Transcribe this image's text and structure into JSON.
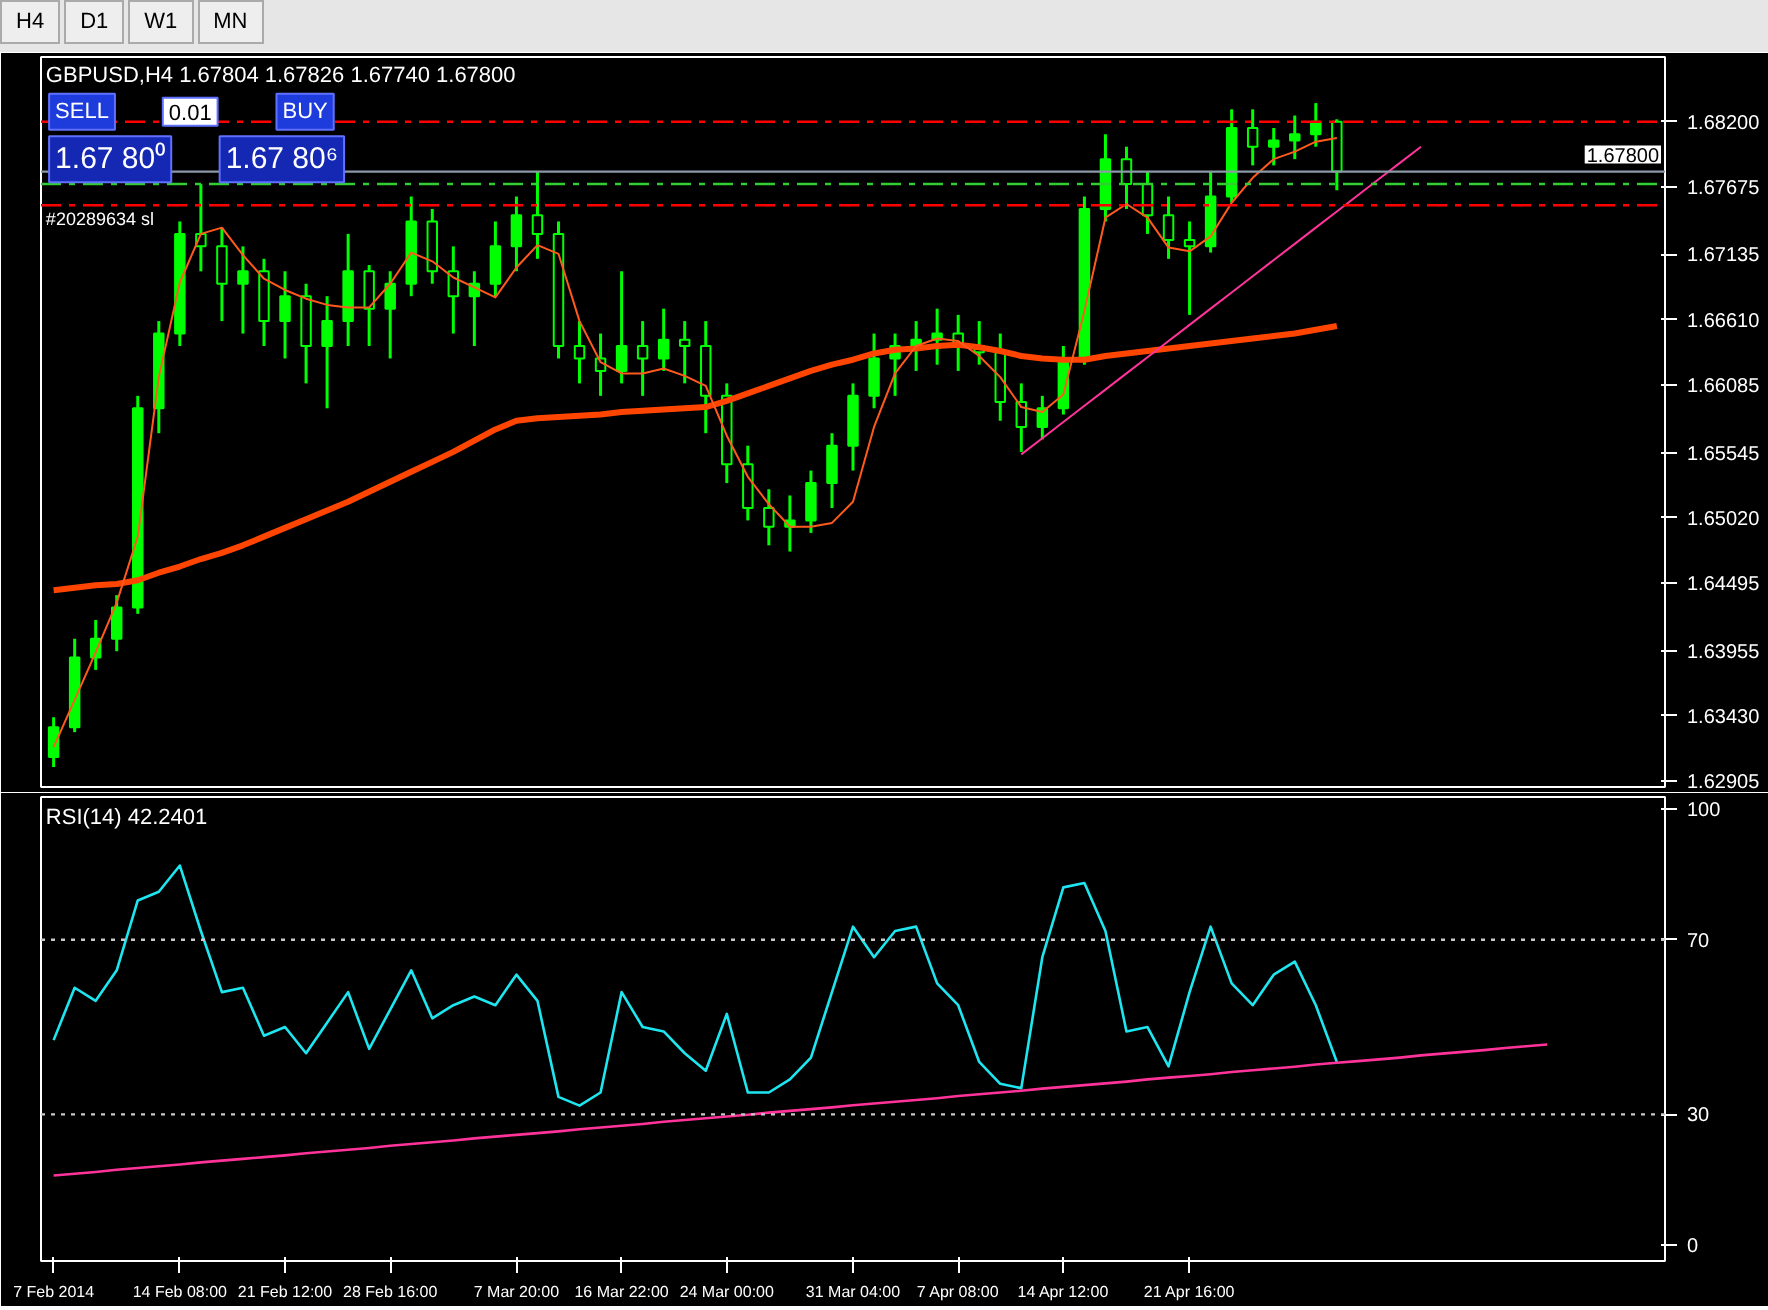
{
  "chart_data": [
    {
      "type": "candlestick",
      "title": "GBPUSD,H4  1.67804 1.67826 1.67740 1.67800",
      "color": "#00ff00",
      "categories": [
        null,
        null,
        null,
        null,
        null,
        null,
        null,
        null,
        null,
        null,
        null,
        null,
        null,
        null,
        null,
        null,
        null,
        null,
        null,
        null,
        null,
        null,
        null,
        null,
        null,
        null,
        null,
        null,
        null,
        null,
        null,
        null,
        null,
        null,
        null,
        null,
        null,
        null,
        null,
        null,
        null,
        null,
        null,
        null,
        null,
        null,
        null,
        null,
        null,
        null,
        null,
        null,
        null,
        null,
        null,
        null,
        null,
        null,
        null,
        null,
        null,
        null,
        null,
        null,
        null,
        null,
        null,
        null,
        null,
        null,
        null,
        null,
        null,
        null,
        null,
        null,
        null
      ],
      "ohlc": [
        [
          1.631,
          1.6342,
          1.6302,
          1.6334
        ],
        [
          1.6334,
          1.6405,
          1.633,
          1.639
        ],
        [
          1.639,
          1.642,
          1.638,
          1.6405
        ],
        [
          1.6405,
          1.644,
          1.6395,
          1.643
        ],
        [
          1.643,
          1.66,
          1.6425,
          1.659
        ],
        [
          1.659,
          1.666,
          1.657,
          1.665
        ],
        [
          1.665,
          1.674,
          1.664,
          1.673
        ],
        [
          1.673,
          1.677,
          1.67,
          1.672
        ],
        [
          1.672,
          1.6735,
          1.666,
          1.669
        ],
        [
          1.669,
          1.672,
          1.665,
          1.67
        ],
        [
          1.67,
          1.671,
          1.664,
          1.666
        ],
        [
          1.666,
          1.67,
          1.663,
          1.668
        ],
        [
          1.668,
          1.669,
          1.661,
          1.664
        ],
        [
          1.664,
          1.668,
          1.659,
          1.666
        ],
        [
          1.666,
          1.673,
          1.664,
          1.67
        ],
        [
          1.67,
          1.6705,
          1.664,
          1.667
        ],
        [
          1.667,
          1.67,
          1.663,
          1.669
        ],
        [
          1.669,
          1.676,
          1.668,
          1.674
        ],
        [
          1.674,
          1.675,
          1.669,
          1.67
        ],
        [
          1.67,
          1.672,
          1.665,
          1.668
        ],
        [
          1.668,
          1.67,
          1.664,
          1.669
        ],
        [
          1.669,
          1.674,
          1.668,
          1.672
        ],
        [
          1.672,
          1.676,
          1.67,
          1.6745
        ],
        [
          1.6745,
          1.678,
          1.671,
          1.673
        ],
        [
          1.673,
          1.674,
          1.663,
          1.664
        ],
        [
          1.664,
          1.666,
          1.661,
          1.663
        ],
        [
          1.663,
          1.665,
          1.66,
          1.662
        ],
        [
          1.662,
          1.67,
          1.661,
          1.664
        ],
        [
          1.664,
          1.666,
          1.66,
          1.663
        ],
        [
          1.663,
          1.667,
          1.662,
          1.6645
        ],
        [
          1.6645,
          1.666,
          1.661,
          1.664
        ],
        [
          1.664,
          1.666,
          1.657,
          1.66
        ],
        [
          1.66,
          1.661,
          1.653,
          1.6545
        ],
        [
          1.6545,
          1.656,
          1.65,
          1.651
        ],
        [
          1.651,
          1.6525,
          1.648,
          1.6495
        ],
        [
          1.6495,
          1.652,
          1.6475,
          1.65
        ],
        [
          1.65,
          1.654,
          1.649,
          1.653
        ],
        [
          1.653,
          1.657,
          1.651,
          1.656
        ],
        [
          1.656,
          1.661,
          1.654,
          1.66
        ],
        [
          1.66,
          1.665,
          1.659,
          1.663
        ],
        [
          1.663,
          1.665,
          1.66,
          1.664
        ],
        [
          1.664,
          1.666,
          1.662,
          1.6645
        ],
        [
          1.6645,
          1.667,
          1.6625,
          1.665
        ],
        [
          1.665,
          1.6665,
          1.662,
          1.664
        ],
        [
          1.664,
          1.666,
          1.6625,
          1.6635
        ],
        [
          1.6635,
          1.665,
          1.658,
          1.6595
        ],
        [
          1.6595,
          1.661,
          1.6555,
          1.6575
        ],
        [
          1.6575,
          1.66,
          1.6565,
          1.659
        ],
        [
          1.659,
          1.664,
          1.6585,
          1.663
        ],
        [
          1.663,
          1.676,
          1.6625,
          1.675
        ],
        [
          1.675,
          1.681,
          1.674,
          1.679
        ],
        [
          1.679,
          1.68,
          1.675,
          1.677
        ],
        [
          1.677,
          1.678,
          1.673,
          1.6745
        ],
        [
          1.6745,
          1.676,
          1.671,
          1.6725
        ],
        [
          1.6725,
          1.674,
          1.6665,
          1.672
        ],
        [
          1.672,
          1.678,
          1.6715,
          1.676
        ],
        [
          1.676,
          1.683,
          1.6755,
          1.6815
        ],
        [
          1.6815,
          1.683,
          1.6785,
          1.68
        ],
        [
          1.68,
          1.6815,
          1.6785,
          1.6805
        ],
        [
          1.6805,
          1.6825,
          1.679,
          1.681
        ],
        [
          1.681,
          1.6835,
          1.68,
          1.682
        ],
        [
          1.682,
          1.6822,
          1.6765,
          1.678
        ],
        null,
        null,
        null,
        null,
        null,
        null,
        null,
        null,
        null,
        null,
        null,
        null,
        null,
        null,
        null
      ],
      "series": [
        {
          "type": "line",
          "color": "#ff4500",
          "values": [
            1.6444,
            1.6446,
            1.6448,
            1.6449,
            1.6452,
            1.6458,
            1.6463,
            1.6469,
            1.6474,
            1.648,
            1.6487,
            1.6494,
            1.6501,
            1.6508,
            1.6515,
            1.6523,
            1.6531,
            1.6539,
            1.6547,
            1.6555,
            1.6564,
            1.6573,
            1.658,
            1.6582,
            1.6583,
            1.6584,
            1.6585,
            1.6587,
            1.6588,
            1.6589,
            1.659,
            1.6591,
            1.6596,
            1.6602,
            1.6608,
            1.6614,
            1.662,
            1.6625,
            1.6629,
            1.6634,
            1.6637,
            1.6638,
            1.664,
            1.6641,
            1.6639,
            1.6636,
            1.6632,
            1.663,
            1.6629,
            1.6629,
            1.6632,
            1.6634,
            1.6636,
            1.6638,
            1.664,
            1.6642,
            1.6644,
            1.6646,
            1.6648,
            1.665,
            1.6653,
            1.6656,
            null,
            null,
            null,
            null,
            null,
            null,
            null,
            null,
            null,
            null,
            null,
            null,
            null,
            null,
            null
          ]
        },
        {
          "type": "line",
          "color": "#ff5a1e",
          "values": [
            1.6318,
            1.6356,
            1.6394,
            1.6434,
            1.6487,
            1.6615,
            1.6691,
            1.673,
            1.6735,
            1.6713,
            1.6694,
            1.6685,
            1.6678,
            1.6673,
            1.6671,
            1.6671,
            1.669,
            1.6715,
            1.6708,
            1.6695,
            1.6687,
            1.6679,
            1.6703,
            1.6721,
            1.6714,
            1.666,
            1.6627,
            1.6618,
            1.6618,
            1.6622,
            1.6616,
            1.6608,
            1.6568,
            1.6535,
            1.6513,
            1.6495,
            1.6495,
            1.6498,
            1.6515,
            1.6575,
            1.6618,
            1.664,
            1.6646,
            1.6644,
            1.6632,
            1.6615,
            1.6591,
            1.6587,
            1.6601,
            1.6668,
            1.6743,
            1.6754,
            1.6743,
            1.6719,
            1.6716,
            1.6728,
            1.6755,
            1.6775,
            1.679,
            1.6796,
            1.6804,
            1.6807,
            null,
            null,
            null,
            null,
            null,
            null,
            null,
            null,
            null,
            null,
            null,
            null,
            null,
            null,
            null
          ]
        },
        {
          "type": "line",
          "color": "#ff3399",
          "values": [
            null,
            null,
            null,
            null,
            null,
            null,
            null,
            null,
            null,
            null,
            null,
            null,
            null,
            null,
            null,
            null,
            null,
            null,
            null,
            null,
            null,
            null,
            null,
            null,
            null,
            null,
            null,
            null,
            null,
            null,
            null,
            null,
            null,
            null,
            null,
            null,
            null,
            null,
            null,
            null,
            null,
            null,
            null,
            null,
            null,
            null,
            1.6553,
            1.6566,
            1.6579,
            1.6592,
            1.6605,
            1.6618,
            1.6631,
            1.6644,
            1.6657,
            1.667,
            1.6683,
            1.6696,
            1.6709,
            1.6722,
            1.6735,
            1.6748,
            1.6761,
            1.6774,
            1.6787,
            1.68,
            null,
            null,
            null,
            null,
            null,
            null,
            null,
            null,
            null,
            null,
            null
          ]
        }
      ],
      "ref_lines": [
        {
          "axis": "y",
          "value": 1.682,
          "color": "#ff0000",
          "line_style": "dashed"
        },
        {
          "axis": "y",
          "value": 1.677,
          "color": "#32cd32",
          "line_style": "dashed"
        },
        {
          "axis": "y",
          "value": 1.6753,
          "color": "#ff0000",
          "line_style": "dashed",
          "label": "#20289634 sl"
        },
        {
          "axis": "y",
          "value": 1.678,
          "color": "#8c9aa8",
          "line_style": "solid",
          "label": "1.67800"
        }
      ],
      "annotations": [
        "H4",
        "D1",
        "W1",
        "MN",
        "SELL",
        "0.01",
        "BUY",
        "1.67 80⁰",
        "1.67 80⁶"
      ],
      "ylim": [
        1.6286,
        1.6872
      ],
      "yticks": [
        {
          "value": 1.682,
          "label": "1.68200"
        },
        {
          "value": 1.67675,
          "label": "1.67675"
        },
        {
          "value": 1.67135,
          "label": "1.67135"
        },
        {
          "value": 1.6661,
          "label": "1.66610"
        },
        {
          "value": 1.66085,
          "label": "1.66085"
        },
        {
          "value": 1.65545,
          "label": "1.65545"
        },
        {
          "value": 1.6502,
          "label": "1.65020"
        },
        {
          "value": 1.64495,
          "label": "1.64495"
        },
        {
          "value": 1.63955,
          "label": "1.63955"
        },
        {
          "value": 1.6343,
          "label": "1.63430"
        },
        {
          "value": 1.62905,
          "label": "1.62905"
        }
      ],
      "tick_labels": "y",
      "grid": false
    },
    {
      "type": "line",
      "title": "RSI(14) 42.2401",
      "categories": [
        "7 Feb 2014",
        null,
        null,
        null,
        null,
        null,
        "14 Feb 08:00",
        null,
        null,
        null,
        null,
        "21 Feb 12:00",
        null,
        null,
        null,
        null,
        "28 Feb 16:00",
        null,
        null,
        null,
        null,
        null,
        "7 Mar 20:00",
        null,
        null,
        null,
        null,
        "16 Mar 22:00",
        null,
        null,
        null,
        null,
        "24 Mar 00:00",
        null,
        null,
        null,
        null,
        null,
        "31 Mar 04:00",
        null,
        null,
        null,
        null,
        "7 Apr 08:00",
        null,
        null,
        null,
        null,
        "14 Apr 12:00",
        null,
        null,
        null,
        null,
        null,
        "21 Apr 16:00",
        null,
        null,
        null,
        null,
        null,
        null,
        null,
        null,
        null,
        null,
        null,
        null,
        null,
        null,
        null,
        null,
        null,
        null,
        null,
        null,
        null,
        null
      ],
      "series": [
        {
          "color": "#1ee6f0",
          "values": [
            47,
            59,
            56,
            63,
            79,
            81,
            87,
            72,
            58,
            59,
            48,
            50,
            44,
            51,
            58,
            45,
            54,
            63,
            52,
            55,
            57,
            55,
            62,
            56,
            34,
            32,
            35,
            58,
            50,
            49,
            44,
            40,
            53,
            35,
            35,
            38,
            43,
            58,
            73,
            66,
            72,
            73,
            60,
            55,
            42,
            37,
            36,
            66,
            82,
            83,
            72,
            49,
            50,
            41,
            58,
            73,
            60,
            55,
            62,
            65,
            55,
            42,
            null,
            null,
            null,
            null,
            null,
            null,
            null,
            null,
            null,
            null,
            null,
            null,
            null,
            null,
            null
          ]
        },
        {
          "color": "#ff3399",
          "values": [
            16.0,
            16.4,
            16.8,
            17.3,
            17.7,
            18.1,
            18.5,
            19.0,
            19.4,
            19.8,
            20.2,
            20.6,
            21.1,
            21.5,
            21.9,
            22.3,
            22.8,
            23.2,
            23.6,
            24.0,
            24.5,
            24.9,
            25.3,
            25.7,
            26.1,
            26.6,
            27.0,
            27.4,
            27.8,
            28.3,
            28.7,
            29.1,
            29.5,
            29.9,
            30.4,
            30.8,
            31.2,
            31.6,
            32.1,
            32.5,
            32.9,
            33.3,
            33.7,
            34.2,
            34.6,
            35.0,
            35.4,
            35.9,
            36.3,
            36.7,
            37.1,
            37.5,
            38.0,
            38.4,
            38.8,
            39.2,
            39.7,
            40.1,
            40.5,
            40.9,
            41.4,
            41.8,
            42.2,
            42.6,
            43.0,
            43.5,
            43.9,
            44.3,
            44.7,
            45.2,
            45.6,
            46.0,
            null,
            null,
            null,
            null,
            null
          ]
        }
      ],
      "ref_lines": [
        {
          "axis": "y",
          "value": 70,
          "color": "#c8c8c8",
          "line_style": "dotted"
        },
        {
          "axis": "y",
          "value": 30,
          "color": "#c8c8c8",
          "line_style": "dotted"
        }
      ],
      "ylim": [
        -3.6,
        102.7
      ],
      "yticks": [
        100,
        70,
        30,
        0
      ],
      "grid": false
    }
  ]
}
